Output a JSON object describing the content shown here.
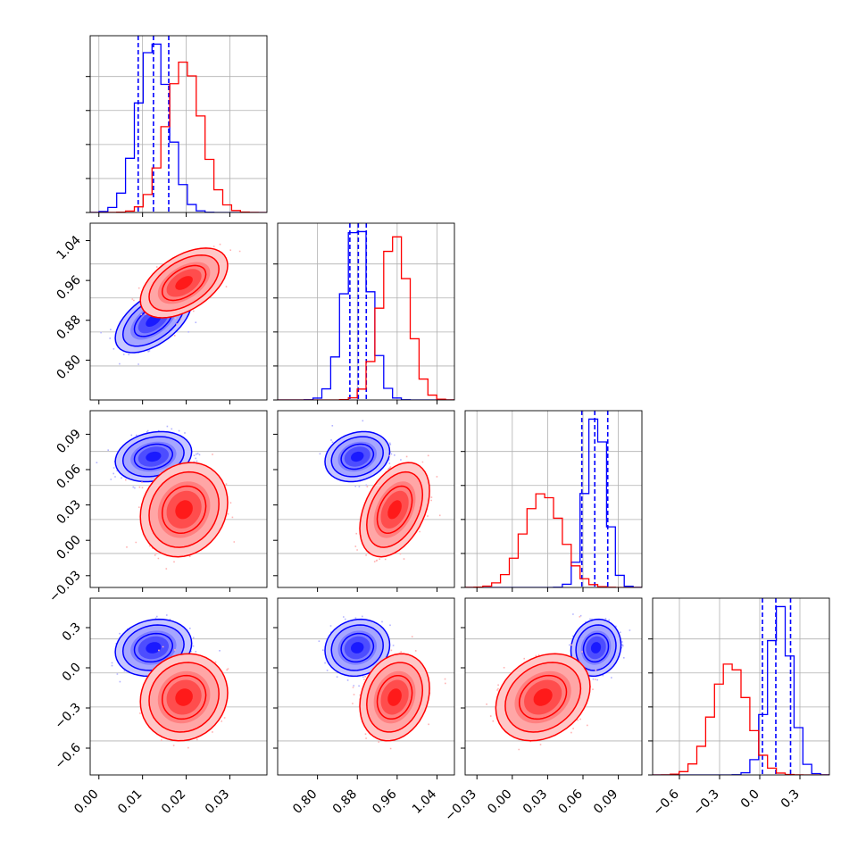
{
  "chart_data": {
    "type": "corner",
    "title": "",
    "parameters": [
      {
        "ticks": [
          0.0,
          0.01,
          0.02,
          0.03
        ],
        "tick_labels": [
          "0.00",
          "0.01",
          "0.02",
          "0.03"
        ],
        "range": [
          -0.002,
          0.0385
        ]
      },
      {
        "ticks": [
          0.8,
          0.88,
          0.96,
          1.04
        ],
        "tick_labels": [
          "0.80",
          "0.88",
          "0.96",
          "1.04"
        ],
        "range": [
          0.72,
          1.075
        ]
      },
      {
        "ticks": [
          -0.03,
          0.0,
          0.03,
          0.06,
          0.09
        ],
        "tick_labels": [
          "−0.03",
          "0.00",
          "0.03",
          "0.06",
          "0.09"
        ],
        "range": [
          -0.04,
          0.11
        ]
      },
      {
        "ticks": [
          -0.6,
          -0.3,
          0.0,
          0.3
        ],
        "tick_labels": [
          "−0.6",
          "−0.3",
          "0.0",
          "0.3"
        ],
        "range": [
          -0.8,
          0.52
        ]
      }
    ],
    "series": [
      {
        "color": "#0000ff",
        "mean": [
          0.0125,
          0.88,
          0.071,
          0.15
        ],
        "sd": [
          0.0035,
          0.026,
          0.0085,
          0.085
        ],
        "rho": [
          [
            1,
            0.55,
            0.2,
            0.15
          ],
          [
            0.55,
            1,
            0.2,
            0.1
          ],
          [
            0.2,
            0.2,
            1,
            0.1
          ],
          [
            0.15,
            0.1,
            0.1,
            1
          ]
        ],
        "quantiles": [
          [
            0.009,
            0.0125,
            0.016
          ],
          [
            0.865,
            0.882,
            0.898
          ],
          [
            0.059,
            0.07,
            0.081
          ],
          [
            0.02,
            0.12,
            0.23
          ]
        ]
      },
      {
        "color": "#ff0000",
        "mean": [
          0.0195,
          0.955,
          0.026,
          -0.22
        ],
        "sd": [
          0.004,
          0.028,
          0.016,
          0.13
        ],
        "rho": [
          [
            1,
            0.5,
            0.15,
            0.1
          ],
          [
            0.5,
            1,
            0.4,
            0.2
          ],
          [
            0.15,
            0.4,
            1,
            0.25
          ],
          [
            0.1,
            0.2,
            0.25,
            1
          ]
        ]
      }
    ],
    "grid": true,
    "legend": "none"
  }
}
